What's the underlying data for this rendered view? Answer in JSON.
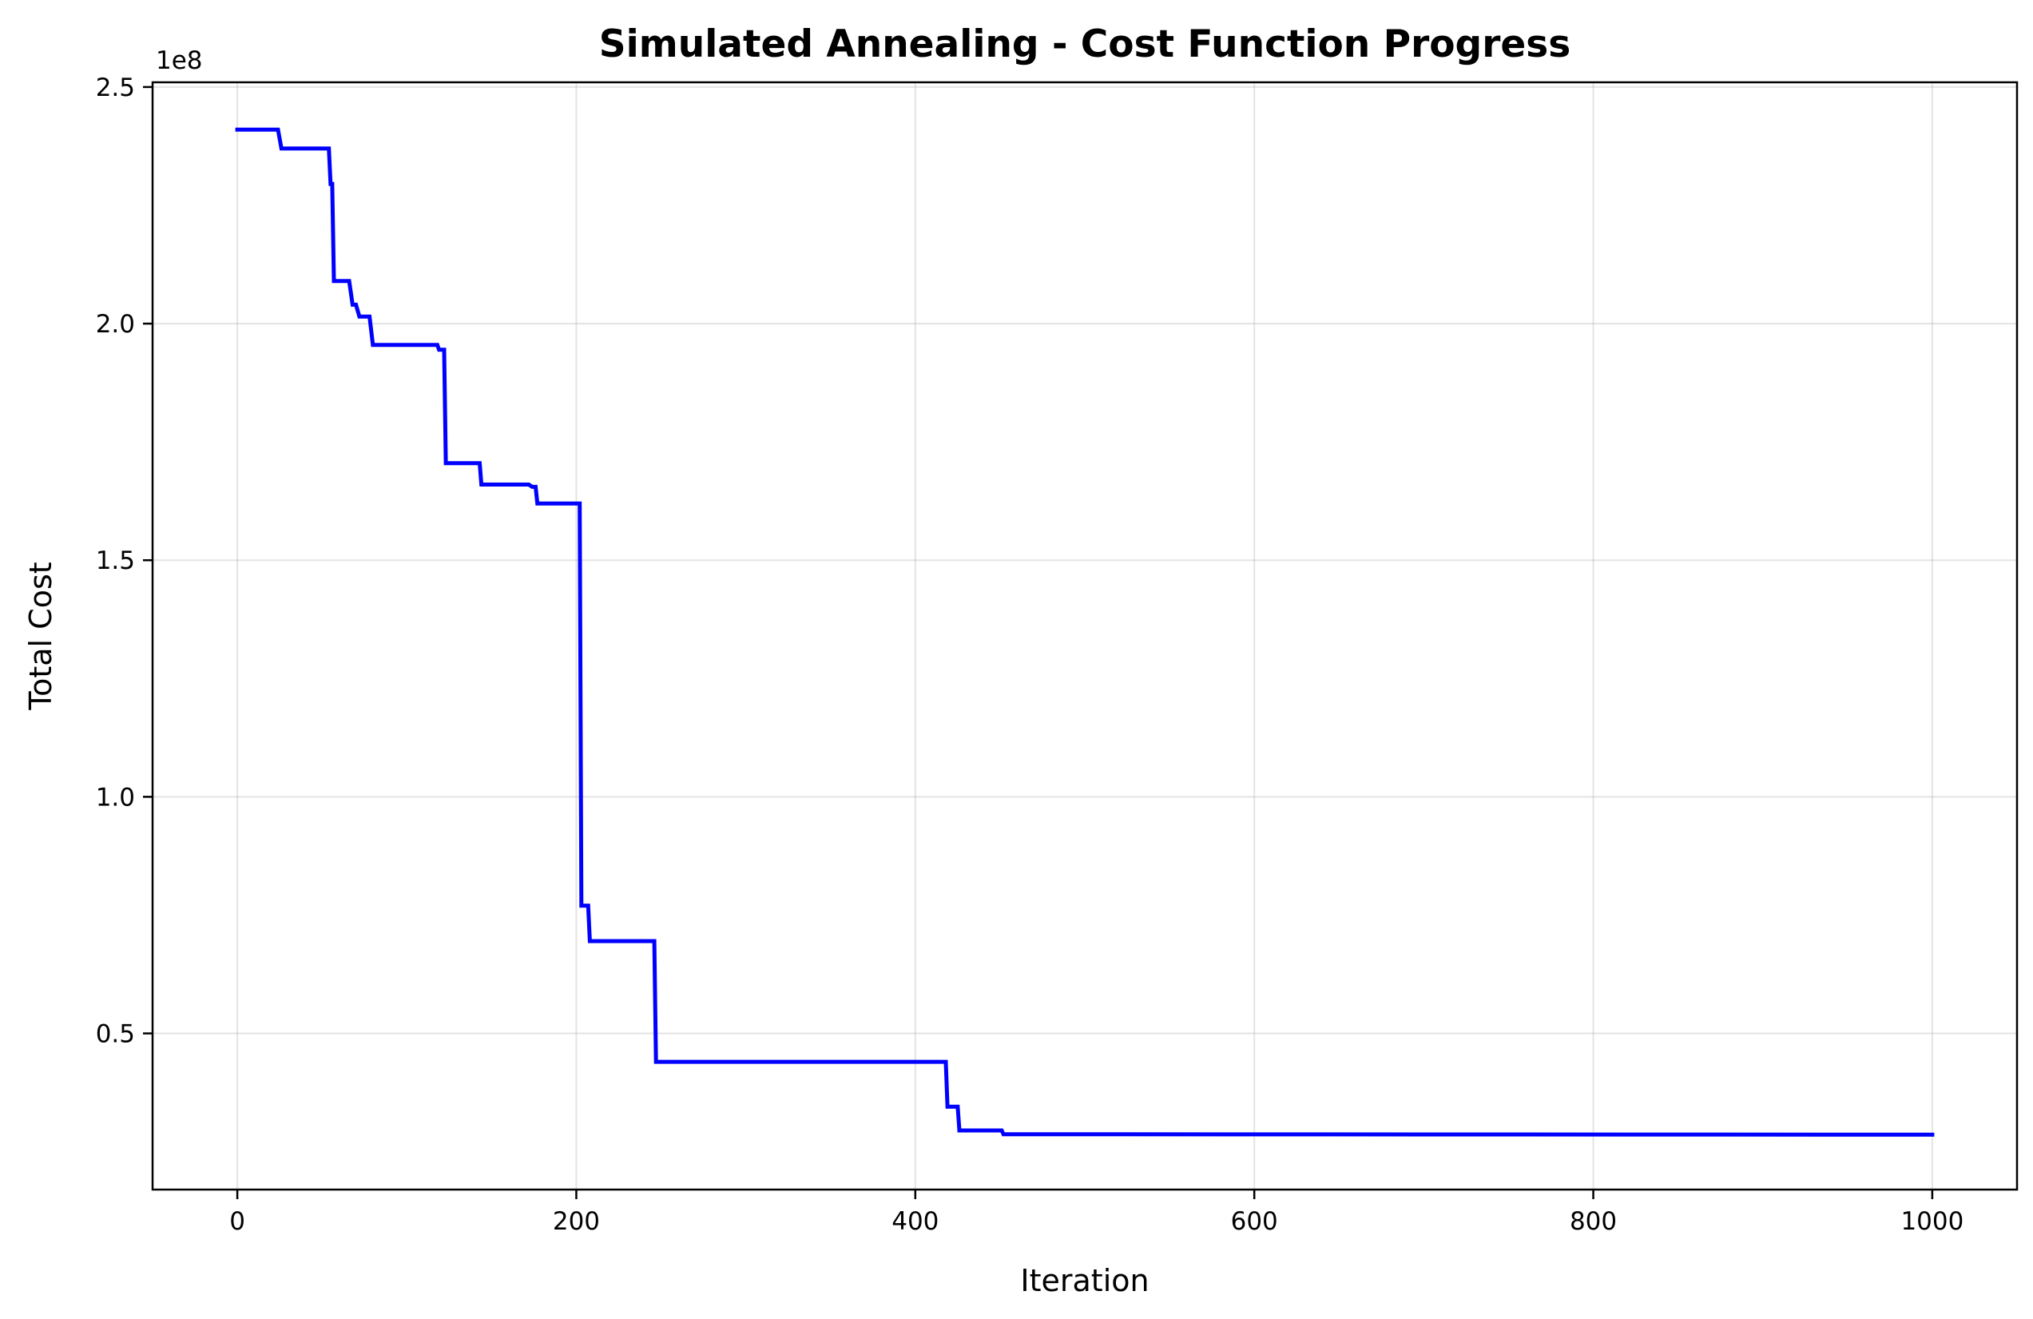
{
  "chart_data": {
    "type": "line",
    "title": "Simulated Annealing - Cost Function Progress",
    "xlabel": "Iteration",
    "ylabel": "Total Cost",
    "y_offset_label": "1e8",
    "xlim": [
      -50,
      1050
    ],
    "ylim": [
      17000000,
      251000000
    ],
    "x_ticks": [
      0,
      200,
      400,
      600,
      800,
      1000
    ],
    "x_tick_labels": [
      "0",
      "200",
      "400",
      "600",
      "800",
      "1000"
    ],
    "y_ticks": [
      50000000,
      100000000,
      150000000,
      200000000,
      250000000
    ],
    "y_tick_labels": [
      "0.5",
      "1.0",
      "1.5",
      "2.0",
      "2.5"
    ],
    "grid": true,
    "series": [
      {
        "color": "#0000ff",
        "x": [
          0,
          24,
          26,
          54,
          55,
          56,
          57,
          58,
          66,
          68,
          70,
          72,
          73,
          78,
          80,
          82,
          118,
          119,
          122,
          123,
          124,
          143,
          144,
          145,
          172,
          174,
          176,
          177,
          178,
          202,
          203,
          207,
          208,
          210,
          246,
          247,
          248,
          418,
          419,
          420,
          425,
          426,
          428,
          451,
          452,
          455,
          1000
        ],
        "y": [
          241000000,
          241000000,
          237000000,
          237000000,
          229500000,
          229500000,
          209000000,
          209000000,
          209000000,
          204000000,
          204000000,
          201500000,
          201500000,
          201500000,
          195500000,
          195500000,
          195500000,
          194500000,
          194500000,
          170500000,
          170500000,
          170500000,
          166000000,
          166000000,
          166000000,
          165500000,
          165500000,
          162000000,
          162000000,
          162000000,
          77000000,
          77000000,
          69500000,
          69500000,
          69500000,
          44000000,
          44000000,
          44000000,
          34500000,
          34500000,
          34500000,
          29500000,
          29500000,
          29500000,
          28700000,
          28700000,
          28600000
        ]
      }
    ]
  }
}
